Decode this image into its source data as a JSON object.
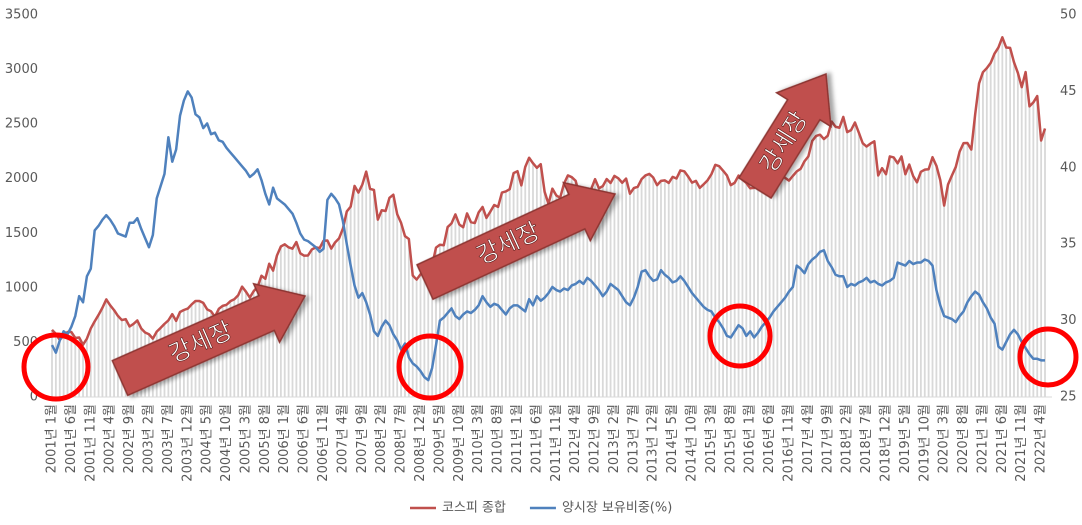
{
  "chart_data": {
    "type": "bar-line",
    "categories": [
      "2001년 1월",
      null,
      null,
      null,
      null,
      "2001년 6월",
      null,
      null,
      null,
      null,
      "2001년 11월",
      null,
      null,
      null,
      null,
      "2002년 4월",
      null,
      null,
      null,
      null,
      "2002년 9월",
      null,
      null,
      null,
      null,
      "2003년 2월",
      null,
      null,
      null,
      null,
      "2003년 7월",
      null,
      null,
      null,
      null,
      "2003년 12월",
      null,
      null,
      null,
      null,
      "2004년 5월",
      null,
      null,
      null,
      null,
      "2004년 10월",
      null,
      null,
      null,
      null,
      "2005년 3월",
      null,
      null,
      null,
      null,
      "2005년 8월",
      null,
      null,
      null,
      null,
      "2006년 1월",
      null,
      null,
      null,
      null,
      "2006년 6월",
      null,
      null,
      null,
      null,
      "2006년 11월",
      null,
      null,
      null,
      null,
      "2007년 4월",
      null,
      null,
      null,
      null,
      "2007년 9월",
      null,
      null,
      null,
      null,
      "2008년 2월",
      null,
      null,
      null,
      null,
      "2008년 7월",
      null,
      null,
      null,
      null,
      "2008년 12월",
      null,
      null,
      null,
      null,
      "2009년 5월",
      null,
      null,
      null,
      null,
      "2009년 10월",
      null,
      null,
      null,
      null,
      "2010년 3월",
      null,
      null,
      null,
      null,
      "2010년 8월",
      null,
      null,
      null,
      null,
      "2011년 1월",
      null,
      null,
      null,
      null,
      "2011년 6월",
      null,
      null,
      null,
      null,
      "2011년 11월",
      null,
      null,
      null,
      null,
      "2012년 4월",
      null,
      null,
      null,
      null,
      "2012년 9월",
      null,
      null,
      null,
      null,
      "2013년 2월",
      null,
      null,
      null,
      null,
      "2013년 7월",
      null,
      null,
      null,
      null,
      "2013년 12월",
      null,
      null,
      null,
      null,
      "2014년 5월",
      null,
      null,
      null,
      null,
      "2014년 10월",
      null,
      null,
      null,
      null,
      "2015년 3월",
      null,
      null,
      null,
      null,
      "2015년 8월",
      null,
      null,
      null,
      null,
      "2016년 1월",
      null,
      null,
      null,
      null,
      "2016년 6월",
      null,
      null,
      null,
      null,
      "2016년 11월",
      null,
      null,
      null,
      null,
      "2017년 4월",
      null,
      null,
      null,
      null,
      "2017년 9월",
      null,
      null,
      null,
      null,
      "2018년 2월",
      null,
      null,
      null,
      null,
      "2018년 7월",
      null,
      null,
      null,
      null,
      "2018년 12월",
      null,
      null,
      null,
      null,
      "2019년 5월",
      null,
      null,
      null,
      null,
      "2019년 10월",
      null,
      null,
      null,
      null,
      "2020년 3월",
      null,
      null,
      null,
      null,
      "2020년 8월",
      null,
      null,
      null,
      null,
      "2021년 1월",
      null,
      null,
      null,
      null,
      "2021년 6월",
      null,
      null,
      null,
      null,
      "2021년 11월",
      null,
      null,
      null,
      null,
      "2022년 4월",
      null
    ],
    "series": [
      {
        "name": "코스피 종합",
        "color": "#c0504d",
        "bar_color": "#d9d9d9",
        "axis": "y",
        "values": [
          615,
          578,
          523,
          565,
          595,
          595,
          541,
          545,
          479,
          535,
          628,
          693,
          752,
          818,
          894,
          840,
          796,
          743,
          705,
          713,
          646,
          669,
          701,
          628,
          591,
          575,
          535,
          599,
          633,
          670,
          702,
          759,
          697,
          779,
          797,
          810,
          848,
          880,
          880,
          862,
          803,
          785,
          735,
          807,
          835,
          845,
          878,
          896,
          932,
          1011,
          965,
          911,
          970,
          1008,
          1111,
          1083,
          1221,
          1158,
          1297,
          1379,
          1399,
          1371,
          1359,
          1420,
          1317,
          1295,
          1297,
          1352,
          1371,
          1364,
          1432,
          1434,
          1360,
          1417,
          1453,
          1543,
          1700,
          1744,
          1934,
          1873,
          1946,
          2065,
          1907,
          1897,
          1625,
          1711,
          1704,
          1825,
          1853,
          1674,
          1595,
          1474,
          1448,
          1113,
          1076,
          1124,
          1162,
          1063,
          1206,
          1369,
          1395,
          1390,
          1557,
          1591,
          1673,
          1581,
          1555,
          1682,
          1602,
          1594,
          1692,
          1741,
          1641,
          1698,
          1759,
          1742,
          1873,
          1883,
          1904,
          2051,
          2069,
          1939,
          2107,
          2192,
          2142,
          2100,
          2133,
          1880,
          1769,
          1909,
          1847,
          1825,
          1955,
          2030,
          2014,
          1981,
          1843,
          1854,
          1881,
          1905,
          1996,
          1912,
          1932,
          1997,
          1961,
          2026,
          2004,
          1963,
          2001,
          1863,
          1914,
          1926,
          1996,
          2030,
          2044,
          2011,
          1941,
          1980,
          1985,
          1961,
          2017,
          2002,
          2076,
          2068,
          2020,
          1964,
          1980,
          1916,
          1949,
          1985,
          2041,
          2127,
          2115,
          2074,
          2030,
          1941,
          1963,
          2029,
          1991,
          1961,
          1912,
          1916,
          1996,
          1994,
          1983,
          1970,
          2016,
          2034,
          2043,
          2008,
          1983,
          2026,
          2067,
          2091,
          2160,
          2205,
          2347,
          2392,
          2403,
          2363,
          2394,
          2523,
          2476,
          2467,
          2566,
          2427,
          2445,
          2515,
          2423,
          2326,
          2295,
          2322,
          2343,
          2030,
          2096,
          2041,
          2204,
          2195,
          2141,
          2204,
          2041,
          2130,
          2025,
          1967,
          2063,
          2083,
          2087,
          2197,
          2119,
          1987,
          1754,
          1947,
          2029,
          2108,
          2249,
          2326,
          2327,
          2267,
          2591,
          2873,
          2976,
          3013,
          3061,
          3147,
          3203,
          3296,
          3202,
          3199,
          3068,
          2970,
          2839,
          2977,
          2663,
          2699,
          2757,
          2350,
          2460
        ]
      },
      {
        "name": "양시장 보유비중(%)",
        "color": "#4f81bd",
        "axis": "y2",
        "values": [
          28.4,
          27.9,
          28.7,
          29.3,
          29.1,
          29.6,
          30.3,
          31.6,
          31.2,
          32.9,
          33.4,
          35.9,
          36.2,
          36.6,
          36.9,
          36.6,
          36.2,
          35.7,
          35.6,
          35.5,
          36.4,
          36.4,
          36.7,
          36.0,
          35.4,
          34.8,
          35.6,
          38.0,
          38.8,
          39.6,
          42.0,
          40.4,
          41.2,
          43.4,
          44.4,
          45.0,
          44.6,
          43.5,
          43.3,
          42.6,
          42.9,
          42.2,
          42.3,
          41.8,
          41.7,
          41.3,
          41.0,
          40.7,
          40.4,
          40.1,
          39.8,
          39.4,
          39.6,
          39.9,
          39.2,
          38.3,
          37.6,
          38.7,
          38.0,
          37.8,
          37.6,
          37.3,
          37.0,
          36.4,
          35.7,
          35.3,
          35.2,
          35.0,
          34.8,
          34.5,
          34.7,
          37.9,
          38.3,
          38.0,
          37.6,
          36.5,
          35.0,
          33.6,
          32.3,
          31.5,
          31.8,
          31.2,
          30.4,
          29.3,
          29.0,
          29.6,
          30.0,
          29.7,
          29.1,
          28.7,
          28.1,
          28.5,
          27.6,
          27.2,
          27.0,
          26.7,
          26.3,
          26.1,
          26.9,
          28.4,
          30.0,
          30.2,
          30.5,
          30.8,
          30.3,
          30.1,
          30.4,
          30.6,
          30.5,
          30.7,
          31.0,
          31.6,
          31.2,
          30.9,
          31.1,
          31.0,
          30.7,
          30.4,
          30.8,
          31.0,
          31.0,
          30.8,
          30.6,
          31.4,
          31.0,
          31.6,
          31.3,
          31.5,
          31.8,
          32.2,
          32.0,
          31.9,
          32.1,
          32.0,
          32.3,
          32.4,
          32.6,
          32.4,
          32.8,
          32.6,
          32.3,
          32.0,
          31.6,
          31.9,
          32.4,
          32.2,
          32.0,
          31.6,
          31.2,
          31.0,
          31.5,
          32.2,
          33.2,
          33.3,
          32.9,
          32.6,
          32.7,
          33.3,
          33.0,
          32.8,
          32.5,
          32.6,
          32.9,
          32.6,
          32.2,
          31.8,
          31.5,
          31.2,
          30.9,
          30.7,
          30.6,
          30.2,
          29.9,
          29.5,
          29.0,
          28.9,
          29.3,
          29.7,
          29.5,
          29.0,
          29.3,
          28.9,
          29.2,
          29.6,
          29.9,
          30.2,
          30.6,
          30.9,
          31.2,
          31.5,
          31.9,
          32.2,
          33.6,
          33.4,
          33.1,
          33.7,
          34.0,
          34.2,
          34.5,
          34.6,
          33.9,
          33.5,
          33.0,
          32.9,
          32.9,
          32.2,
          32.4,
          32.3,
          32.5,
          32.6,
          32.8,
          32.5,
          32.6,
          32.4,
          32.3,
          32.5,
          32.6,
          32.8,
          33.8,
          33.7,
          33.6,
          33.9,
          33.7,
          33.8,
          33.8,
          34.0,
          33.9,
          33.6,
          32.0,
          31.0,
          30.3,
          30.2,
          30.1,
          29.9,
          30.3,
          30.6,
          31.2,
          31.6,
          31.9,
          31.7,
          31.2,
          30.8,
          30.2,
          29.8,
          28.3,
          28.1,
          28.6,
          29.1,
          29.4,
          29.1,
          28.6,
          28.2,
          27.8,
          27.5,
          27.5,
          27.4,
          27.4
        ]
      }
    ],
    "ylim": [
      0,
      3500
    ],
    "yticks": [
      0,
      500,
      1000,
      1500,
      2000,
      2500,
      3000,
      3500
    ],
    "y2lim": [
      25,
      50
    ],
    "y2ticks": [
      25,
      30,
      35,
      40,
      45,
      50
    ],
    "grid": false,
    "legend": "bottom",
    "annotations": [
      "강세장",
      "강세장",
      "강세장"
    ]
  }
}
